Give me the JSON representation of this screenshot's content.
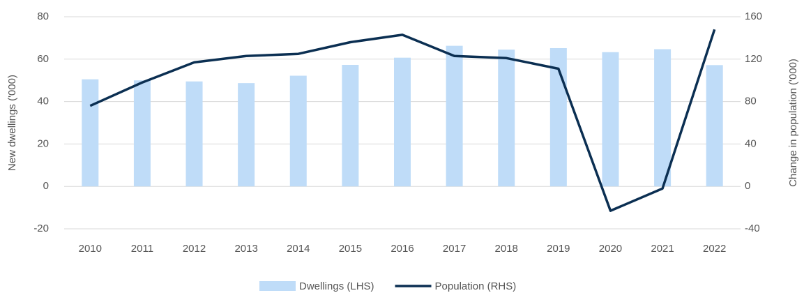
{
  "chart_data": {
    "type": "bar_line",
    "categories": [
      "2010",
      "2011",
      "2012",
      "2013",
      "2014",
      "2015",
      "2016",
      "2017",
      "2018",
      "2019",
      "2020",
      "2021",
      "2022"
    ],
    "series": [
      {
        "name": "Dwellings (LHS)",
        "type": "bar",
        "color": "#bfdcf8",
        "axis": "y",
        "values": [
          50.5,
          50,
          49.5,
          48.7,
          52.2,
          57.3,
          60.7,
          66.3,
          64.5,
          65.2,
          63.3,
          64.7,
          57.2
        ]
      },
      {
        "name": "Population (RHS)",
        "type": "line",
        "color": "#0b2f52",
        "axis": "y2",
        "values": [
          76,
          98,
          117,
          123,
          125,
          136,
          143,
          123,
          121,
          111,
          -23,
          -2,
          148
        ]
      }
    ],
    "y_label": "New dwellings ('000)",
    "y2_label": "Change in population ('000)",
    "ylim": [
      -20,
      80
    ],
    "yticks": [
      -20,
      0,
      20,
      40,
      60,
      80
    ],
    "y2lim": [
      -40,
      160
    ],
    "y2ticks": [
      -40,
      0,
      40,
      80,
      120,
      160
    ],
    "grid": true,
    "legend": "bottom"
  }
}
